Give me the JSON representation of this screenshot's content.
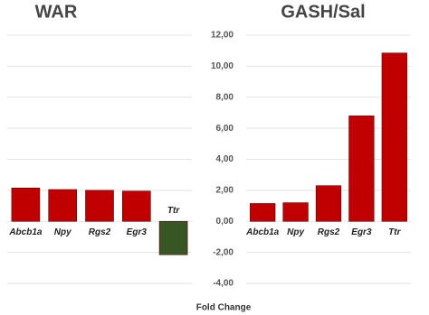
{
  "chart_data": [
    {
      "type": "bar",
      "title": "WAR",
      "categories": [
        "Abcb1a",
        "Npy",
        "Rgs2",
        "Egr3",
        "Ttr"
      ],
      "values": [
        2.15,
        2.05,
        2.0,
        1.95,
        -2.15
      ],
      "colors": [
        "#c00000",
        "#c00000",
        "#c00000",
        "#c00000",
        "#375623"
      ],
      "ylim": [
        -4,
        12
      ],
      "grid": true
    },
    {
      "type": "bar",
      "title": "GASH/Sal",
      "categories": [
        "Abcb1a",
        "Npy",
        "Rgs2",
        "Egr3",
        "Ttr"
      ],
      "values": [
        1.15,
        1.2,
        2.3,
        6.8,
        10.85
      ],
      "colors": [
        "#c00000",
        "#c00000",
        "#c00000",
        "#c00000",
        "#c00000"
      ],
      "ylim": [
        -4,
        12
      ],
      "grid": true,
      "yticks": [
        {
          "value": -4,
          "label": "-4,00"
        },
        {
          "value": -2,
          "label": "-2,00"
        },
        {
          "value": 0,
          "label": "0,00"
        },
        {
          "value": 2,
          "label": "2,00"
        },
        {
          "value": 4,
          "label": "4,00"
        },
        {
          "value": 6,
          "label": "6,00"
        },
        {
          "value": 8,
          "label": "8,00"
        },
        {
          "value": 10,
          "label": "10,00"
        },
        {
          "value": 12,
          "label": "12,00"
        }
      ],
      "axis_label": "Fold Change"
    }
  ]
}
